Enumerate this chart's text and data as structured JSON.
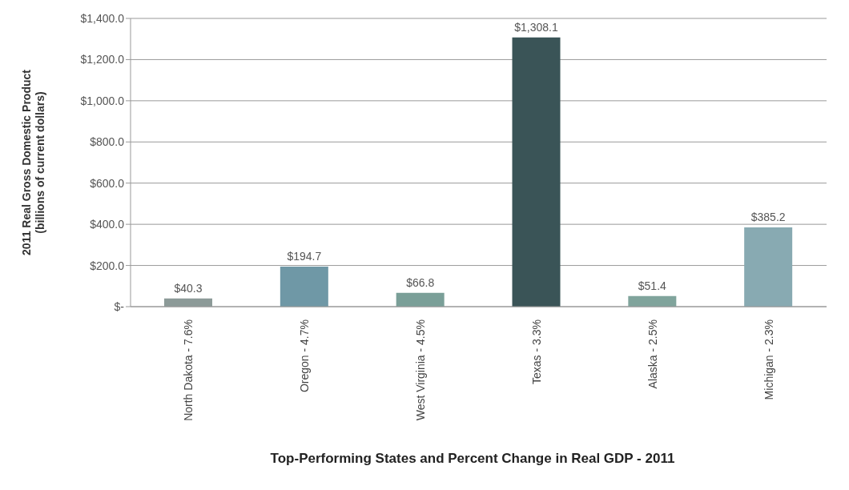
{
  "chart_data": {
    "type": "bar",
    "title": "Top-Performing States and Percent Change in Real GDP - 2011",
    "ylabel": "2011 Real Gross Domestic Product (billions of current dollars)",
    "categories": [
      "North Dakota - 7.6%",
      "Oregon - 4.7%",
      "West Virginia - 4.5%",
      "Texas - 3.3%",
      "Alaska - 2.5%",
      "Michigan - 2.3%"
    ],
    "values": [
      40.3,
      194.7,
      66.8,
      1308.1,
      51.4,
      385.2
    ],
    "colors": [
      "#8c9a98",
      "#6f98a6",
      "#7a9f98",
      "#3a5457",
      "#80a49c",
      "#88aab2"
    ],
    "value_labels": [
      "$40.3",
      "$194.7",
      "$66.8",
      "$1,308.1",
      "$51.4",
      "$385.2"
    ],
    "ylim": [
      0,
      1400
    ],
    "yticks": [
      {
        "value": 0,
        "label": "$-"
      },
      {
        "value": 200,
        "label": "$200.0"
      },
      {
        "value": 400,
        "label": "$400.0"
      },
      {
        "value": 600,
        "label": "$600.0"
      },
      {
        "value": 800,
        "label": "$800.0"
      },
      {
        "value": 1000,
        "label": "$1,000.0"
      },
      {
        "value": 1200,
        "label": "$1,200.0"
      },
      {
        "value": 1400,
        "label": "$1,400.0"
      }
    ],
    "grid": "y"
  }
}
